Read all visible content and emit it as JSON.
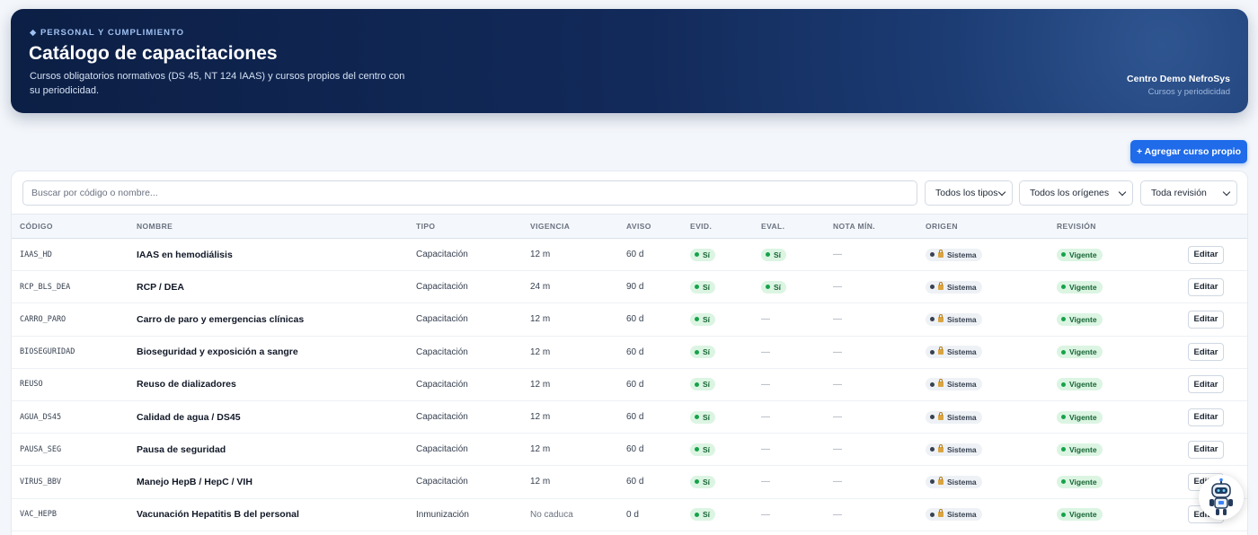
{
  "header": {
    "kicker": "◆ PERSONAL Y CUMPLIMIENTO",
    "title": "Catálogo de capacitaciones",
    "subtitle": "Cursos obligatorios normativos (DS 45, NT 124 IAAS) y cursos propios del centro con su periodicidad.",
    "org_name": "Centro Demo NefroSys",
    "org_sub": "Cursos y periodicidad"
  },
  "actions": {
    "add_label": "+ Agregar curso propio"
  },
  "filters": {
    "search_placeholder": "Buscar por código o nombre...",
    "tipo": "Todos los tipos",
    "origen": "Todos los orígenes",
    "revision": "Toda revisión"
  },
  "table": {
    "headers": [
      "CÓDIGO",
      "NOMBRE",
      "TIPO",
      "VIGENCIA",
      "AVISO",
      "EVID.",
      "EVAL.",
      "NOTA MÍN.",
      "ORIGEN",
      "REVISIÓN"
    ],
    "edit_label": "Editar",
    "rows": [
      {
        "code": "IAAS_HD",
        "name": "IAAS en hemodiálisis",
        "tipo": "Capacitación",
        "vigencia": "12 m",
        "aviso": "60 d",
        "evid": "Sí",
        "eval": "Sí",
        "nota": "—",
        "origen": "Sistema",
        "revision": "Vigente"
      },
      {
        "code": "RCP_BLS_DEA",
        "name": "RCP / DEA",
        "tipo": "Capacitación",
        "vigencia": "24 m",
        "aviso": "90 d",
        "evid": "Sí",
        "eval": "Sí",
        "nota": "—",
        "origen": "Sistema",
        "revision": "Vigente"
      },
      {
        "code": "CARRO_PARO",
        "name": "Carro de paro y emergencias clínicas",
        "tipo": "Capacitación",
        "vigencia": "12 m",
        "aviso": "60 d",
        "evid": "Sí",
        "eval": "—",
        "nota": "—",
        "origen": "Sistema",
        "revision": "Vigente"
      },
      {
        "code": "BIOSEGURIDAD",
        "name": "Bioseguridad y exposición a sangre",
        "tipo": "Capacitación",
        "vigencia": "12 m",
        "aviso": "60 d",
        "evid": "Sí",
        "eval": "—",
        "nota": "—",
        "origen": "Sistema",
        "revision": "Vigente"
      },
      {
        "code": "REUSO",
        "name": "Reuso de dializadores",
        "tipo": "Capacitación",
        "vigencia": "12 m",
        "aviso": "60 d",
        "evid": "Sí",
        "eval": "—",
        "nota": "—",
        "origen": "Sistema",
        "revision": "Vigente"
      },
      {
        "code": "AGUA_DS45",
        "name": "Calidad de agua / DS45",
        "tipo": "Capacitación",
        "vigencia": "12 m",
        "aviso": "60 d",
        "evid": "Sí",
        "eval": "—",
        "nota": "—",
        "origen": "Sistema",
        "revision": "Vigente"
      },
      {
        "code": "PAUSA_SEG",
        "name": "Pausa de seguridad",
        "tipo": "Capacitación",
        "vigencia": "12 m",
        "aviso": "60 d",
        "evid": "Sí",
        "eval": "—",
        "nota": "—",
        "origen": "Sistema",
        "revision": "Vigente"
      },
      {
        "code": "VIRUS_BBV",
        "name": "Manejo HepB / HepC / VIH",
        "tipo": "Capacitación",
        "vigencia": "12 m",
        "aviso": "60 d",
        "evid": "Sí",
        "eval": "—",
        "nota": "—",
        "origen": "Sistema",
        "revision": "Vigente"
      },
      {
        "code": "VAC_HEPB",
        "name": "Vacunación Hepatitis B del personal",
        "tipo": "Inmunización",
        "vigencia": "No caduca",
        "aviso": "0 d",
        "evid": "Sí",
        "eval": "—",
        "nota": "—",
        "origen": "Sistema",
        "revision": "Vigente"
      }
    ]
  }
}
